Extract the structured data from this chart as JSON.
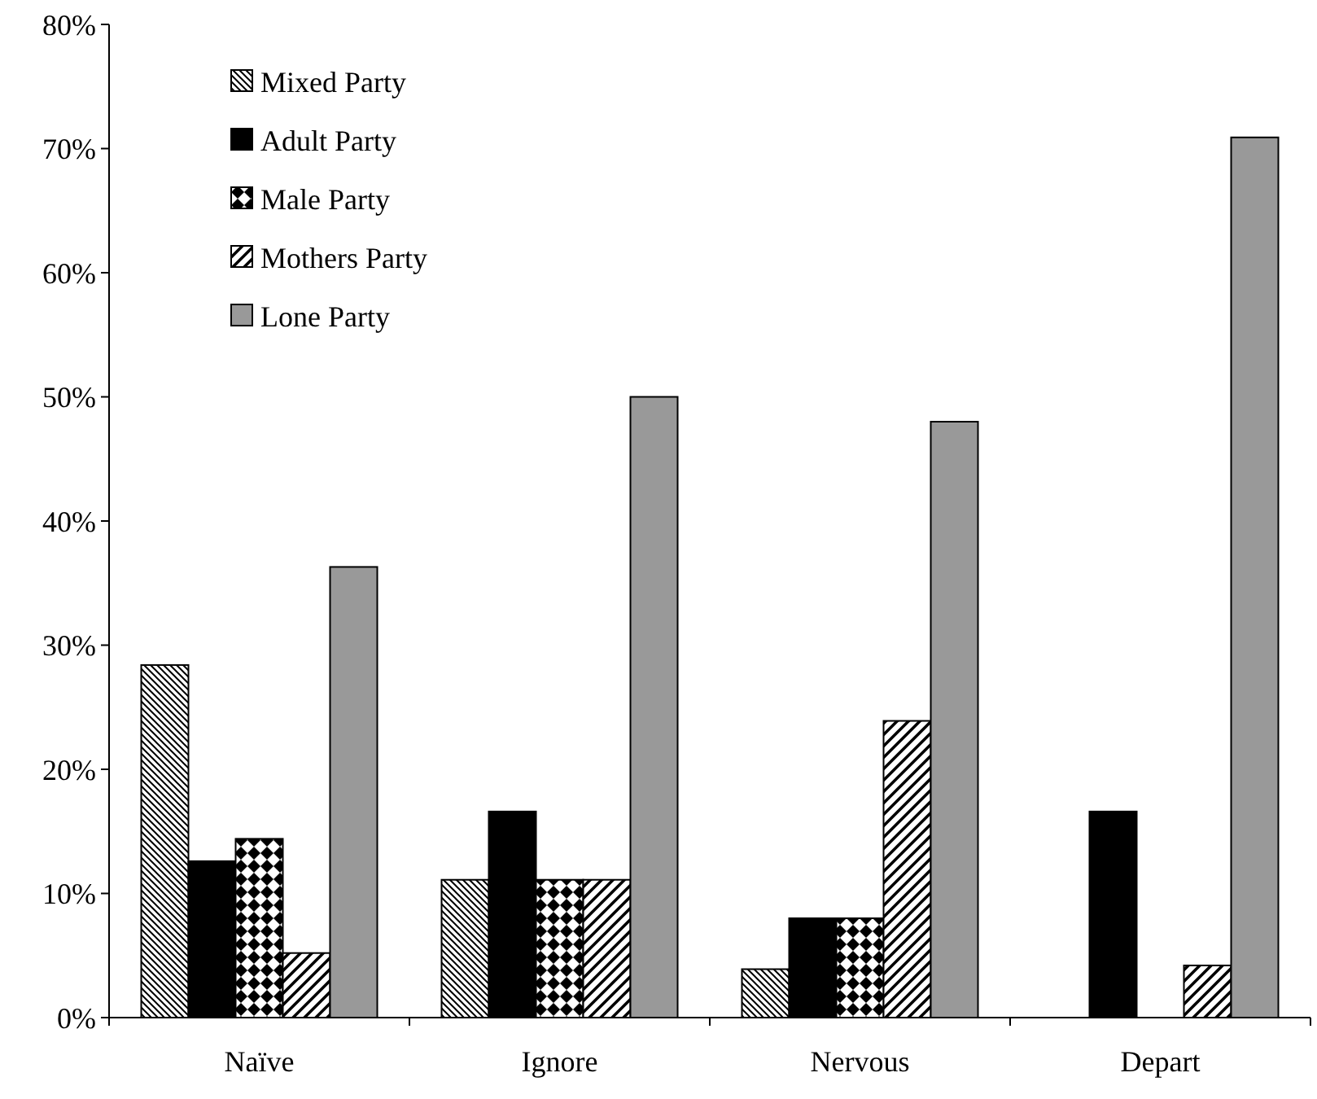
{
  "chart_data": {
    "type": "bar",
    "categories": [
      "Naïve",
      "Ignore",
      "Nervous",
      "Depart"
    ],
    "series": [
      {
        "name": "Mixed Party",
        "color": "#000000",
        "values": [
          28.4,
          11.1,
          3.9,
          0
        ]
      },
      {
        "name": "Adult Party",
        "color": "#000000",
        "values": [
          12.6,
          16.6,
          8.0,
          16.6
        ]
      },
      {
        "name": "Male Party",
        "color": "#000000",
        "values": [
          14.4,
          11.1,
          8.0,
          0
        ]
      },
      {
        "name": "Mothers Party",
        "color": "#000000",
        "values": [
          5.2,
          11.1,
          23.9,
          4.2
        ]
      },
      {
        "name": "Lone Party",
        "color": "#999999",
        "values": [
          36.3,
          50.0,
          48.0,
          70.9
        ]
      }
    ],
    "ylim": [
      0,
      80
    ],
    "yticks": [
      {
        "value": 0,
        "label": "0%"
      },
      {
        "value": 10,
        "label": "10%"
      },
      {
        "value": 20,
        "label": "20%"
      },
      {
        "value": 30,
        "label": "30%"
      },
      {
        "value": 40,
        "label": "40%"
      },
      {
        "value": 50,
        "label": "50%"
      },
      {
        "value": 60,
        "label": "60%"
      },
      {
        "value": 70,
        "label": "70%"
      },
      {
        "value": 80,
        "label": "80%"
      }
    ],
    "grid": false,
    "legend": "top left"
  }
}
